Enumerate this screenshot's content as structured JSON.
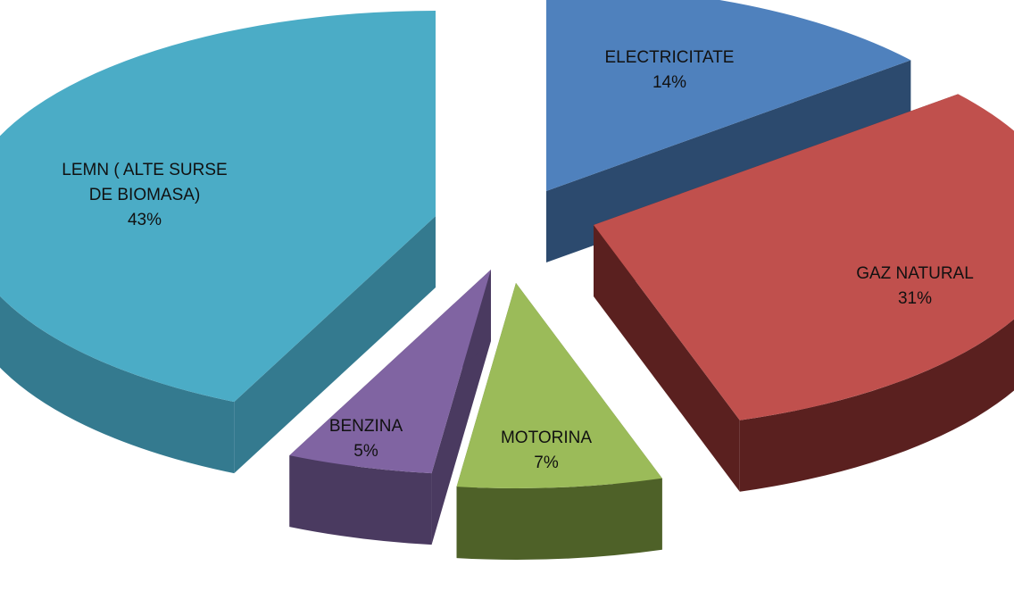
{
  "chart_data": {
    "type": "pie",
    "style": "3d-exploded",
    "legend": "none",
    "slices": [
      {
        "name": "ELECTRICITATE",
        "value": 14,
        "label_lines": [
          "ELECTRICITATE"
        ],
        "pct_label": "14%",
        "color": "#4F81BD",
        "side_color": "#2C4A6E"
      },
      {
        "name": "GAZ NATURAL",
        "value": 31,
        "label_lines": [
          "GAZ NATURAL"
        ],
        "pct_label": "31%",
        "color": "#C0504D",
        "side_color": "#5A201F"
      },
      {
        "name": "MOTORINA",
        "value": 7,
        "label_lines": [
          "MOTORINA"
        ],
        "pct_label": "7%",
        "color": "#9BBB59",
        "side_color": "#4E6128"
      },
      {
        "name": "BENZINA",
        "value": 5,
        "label_lines": [
          "BENZINA"
        ],
        "pct_label": "5%",
        "color": "#8064A2",
        "side_color": "#4A3A60"
      },
      {
        "name": "LEMN ( ALTE SURSE DE BIOMASA)",
        "value": 43,
        "label_lines": [
          "LEMN ( ALTE SURSE",
          "DE BIOMASA)"
        ],
        "pct_label": "43%",
        "color": "#4BACC6",
        "side_color": "#347A8F"
      }
    ]
  }
}
